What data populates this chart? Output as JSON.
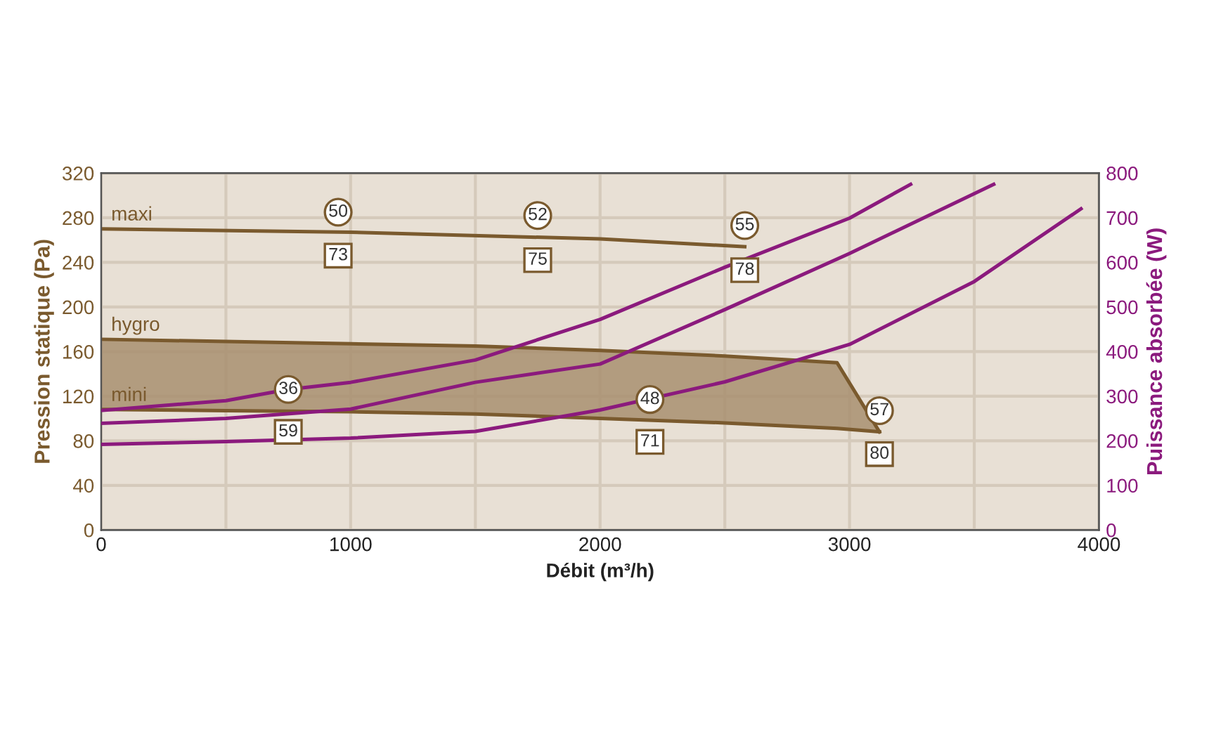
{
  "chart_data": {
    "type": "line",
    "xlabel": "Débit (m³/h)",
    "ylabel": "Pression statique (Pa)",
    "y2label": "Puissance absorbée (W)",
    "xlim": [
      0,
      4000
    ],
    "xticks": [
      0,
      {
        "value": 500,
        "label": null
      },
      1000,
      {
        "value": 1500,
        "label": null
      },
      2000,
      {
        "value": 2500,
        "label": null
      },
      3000,
      {
        "value": 3500,
        "label": null
      },
      4000
    ],
    "ylim": [
      0,
      320
    ],
    "yticks": [
      0,
      40,
      80,
      120,
      160,
      200,
      240,
      280,
      320
    ],
    "y2lim": [
      0,
      800
    ],
    "y2ticks": [
      0,
      100,
      200,
      300,
      400,
      500,
      600,
      700,
      800
    ],
    "grid": true,
    "legend": false,
    "marker": "none",
    "line_style": "solid",
    "series": [
      {
        "name": "maxi",
        "color": "#7a5a2e",
        "x": [
          0,
          1000,
          2000,
          2580
        ],
        "values": [
          270,
          267,
          261,
          254
        ]
      },
      {
        "name": "hygro",
        "color": "#7a5a2e",
        "x": [
          0,
          500,
          1000,
          1500,
          2000,
          2500,
          2950,
          3120
        ],
        "values": [
          171,
          169,
          167,
          165,
          161,
          156,
          150,
          88
        ]
      },
      {
        "name": "mini",
        "color": "#7a5a2e",
        "x": [
          0,
          500,
          1000,
          1500,
          2000,
          2500,
          2950,
          3120
        ],
        "values": [
          108,
          107,
          106,
          104,
          100,
          96,
          91,
          88
        ]
      },
      {
        "color": "#8b1a7d",
        "axis": "y2",
        "x": [
          0,
          500,
          750,
          1000,
          1500,
          2000,
          2500,
          3000,
          3245
        ],
        "values": [
          268,
          290,
          315,
          331,
          381,
          472,
          589,
          699,
          775
        ]
      },
      {
        "color": "#8b1a7d",
        "axis": "y2",
        "x": [
          0,
          500,
          1000,
          1500,
          2000,
          2500,
          3000,
          3578
        ],
        "values": [
          239,
          250,
          271,
          331,
          372,
          494,
          620,
          775
        ]
      },
      {
        "color": "#8b1a7d",
        "axis": "y2",
        "x": [
          0,
          500,
          1000,
          1500,
          2000,
          2500,
          3000,
          3500,
          3928
        ],
        "values": [
          192,
          198,
          206,
          221,
          269,
          332,
          416,
          557,
          720
        ]
      }
    ],
    "annotations": [
      {
        "text": "50",
        "x": 950,
        "y": 285
      },
      {
        "text": "73",
        "x": 950,
        "y": 246
      },
      {
        "text": "52",
        "x": 1750,
        "y": 282
      },
      {
        "text": "75",
        "x": 1750,
        "y": 242
      },
      {
        "text": "55",
        "x": 2580,
        "y": 273
      },
      {
        "text": "78",
        "x": 2580,
        "y": 233
      },
      {
        "text": "36",
        "x": 750,
        "y": 126
      },
      {
        "text": "59",
        "x": 750,
        "y": 88
      },
      {
        "text": "48",
        "x": 2200,
        "y": 117
      },
      {
        "text": "71",
        "x": 2200,
        "y": 79
      },
      {
        "text": "57",
        "x": 3120,
        "y": 107
      },
      {
        "text": "80",
        "x": 3120,
        "y": 68
      }
    ]
  }
}
